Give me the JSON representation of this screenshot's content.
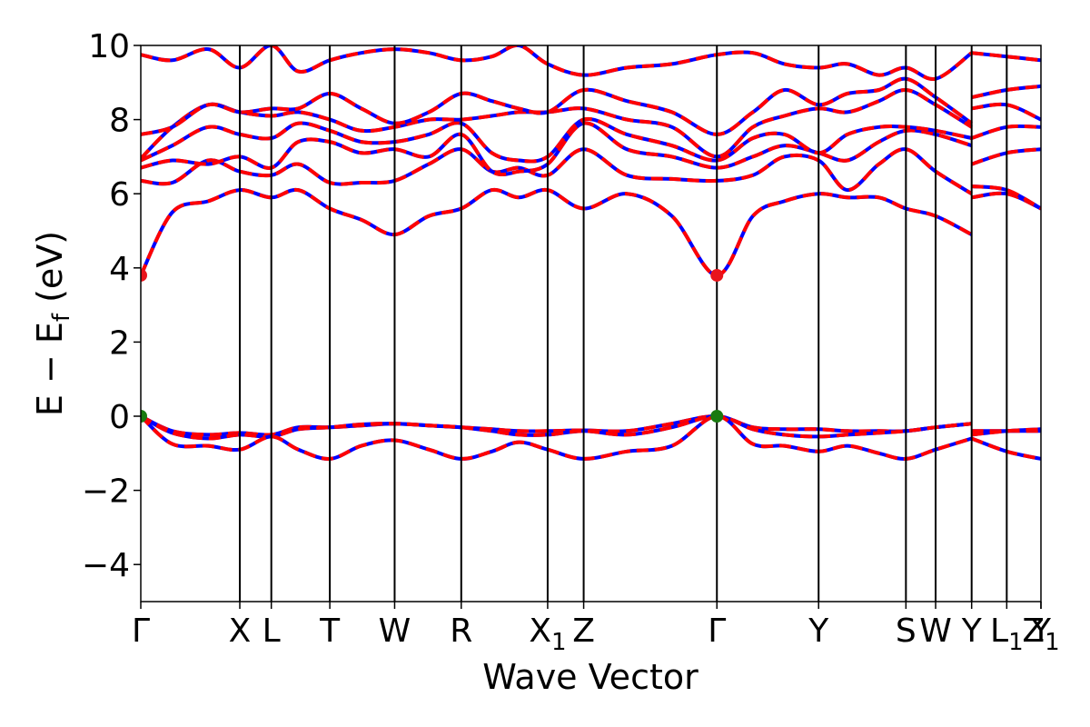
{
  "chart_data": {
    "type": "line",
    "title": "",
    "xlabel": "Wave Vector",
    "ylabel_parts": {
      "a": "E − E",
      "sub": "f",
      "b": " (eV)"
    },
    "ylim": [
      -5,
      10
    ],
    "yticks": [
      -4,
      -2,
      0,
      2,
      4,
      6,
      8,
      10
    ],
    "ytick_labels": [
      "−4",
      "−2",
      "0",
      "2",
      "4",
      "6",
      "8",
      "10"
    ],
    "xlim": [
      0,
      10
    ],
    "kpoints": [
      {
        "label": "Γ",
        "sub": "",
        "x": 0.0
      },
      {
        "label": "X",
        "sub": "",
        "x": 1.1
      },
      {
        "label": "L",
        "sub": "",
        "x": 1.45
      },
      {
        "label": "T",
        "sub": "",
        "x": 2.1
      },
      {
        "label": "W",
        "sub": "",
        "x": 2.82
      },
      {
        "label": "R",
        "sub": "",
        "x": 3.56
      },
      {
        "label": "X",
        "sub": "1",
        "x": 4.52
      },
      {
        "label": "Z",
        "sub": "",
        "x": 4.92
      },
      {
        "label": "Γ",
        "sub": "",
        "x": 6.4
      },
      {
        "label": "Y",
        "sub": "",
        "x": 7.53
      },
      {
        "label": "S",
        "sub": "",
        "x": 8.5
      },
      {
        "label": "W",
        "sub": "",
        "x": 8.83
      },
      {
        "label": "Y",
        "sub": "",
        "x": 9.23
      },
      {
        "label": "L",
        "sub": "1",
        "x": 9.62
      },
      {
        "label": "Y",
        "sub": "",
        "x": 10.0
      },
      {
        "label": "Z",
        "sub": "1",
        "x": 10.0
      }
    ],
    "x": [
      0.0,
      0.35,
      0.75,
      1.1,
      1.45,
      1.75,
      2.1,
      2.45,
      2.82,
      3.2,
      3.56,
      3.9,
      4.2,
      4.52,
      4.92,
      5.4,
      5.9,
      6.4,
      6.8,
      7.15,
      7.53,
      7.85,
      8.2,
      8.5,
      8.83,
      9.23
    ],
    "x_tail": [
      9.23,
      9.62,
      10.0
    ],
    "series": [
      {
        "role": "conduction",
        "values": [
          3.8,
          5.5,
          5.8,
          6.1,
          5.9,
          6.1,
          5.6,
          5.3,
          4.9,
          5.4,
          5.6,
          6.1,
          5.9,
          6.1,
          5.6,
          6.0,
          5.4,
          3.8,
          5.4,
          5.8,
          6.0,
          5.9,
          5.9,
          5.6,
          5.4,
          4.9
        ],
        "tail": [
          5.9,
          6.0,
          5.6
        ]
      },
      {
        "role": "conduction",
        "values": [
          6.35,
          6.3,
          6.9,
          6.6,
          6.5,
          6.8,
          6.3,
          6.3,
          6.35,
          6.8,
          7.2,
          6.6,
          6.7,
          6.5,
          7.2,
          6.5,
          6.4,
          6.35,
          6.5,
          7.0,
          6.9,
          6.1,
          6.8,
          7.2,
          6.6,
          6.0
        ],
        "tail": [
          6.2,
          6.1,
          5.6
        ]
      },
      {
        "role": "conduction",
        "values": [
          6.7,
          6.9,
          6.8,
          7.0,
          6.7,
          7.4,
          7.4,
          7.1,
          7.2,
          7.0,
          7.6,
          6.6,
          6.6,
          6.8,
          7.9,
          7.2,
          7.0,
          6.7,
          7.0,
          7.3,
          7.1,
          6.9,
          7.4,
          7.7,
          7.6,
          7.3
        ],
        "tail": [
          6.8,
          7.1,
          7.2
        ]
      },
      {
        "role": "conduction",
        "values": [
          6.9,
          7.3,
          7.8,
          7.6,
          7.5,
          7.9,
          7.7,
          7.4,
          7.4,
          7.6,
          7.9,
          7.1,
          6.9,
          7.0,
          8.0,
          7.6,
          7.3,
          6.9,
          7.5,
          7.6,
          7.1,
          7.6,
          7.8,
          7.8,
          7.7,
          7.5
        ],
        "tail": [
          7.5,
          7.8,
          7.8
        ]
      },
      {
        "role": "conduction",
        "values": [
          6.95,
          7.8,
          8.4,
          8.2,
          8.1,
          8.2,
          8.0,
          7.7,
          7.8,
          8.0,
          8.0,
          8.1,
          8.2,
          8.2,
          8.3,
          8.0,
          7.8,
          7.0,
          7.8,
          8.1,
          8.3,
          8.2,
          8.5,
          8.8,
          8.4,
          7.8
        ],
        "tail": [
          8.3,
          8.4,
          8.0
        ]
      },
      {
        "role": "conduction",
        "values": [
          7.6,
          7.8,
          8.4,
          8.2,
          8.3,
          8.3,
          8.7,
          8.3,
          7.9,
          8.2,
          8.7,
          8.5,
          8.3,
          8.2,
          8.8,
          8.5,
          8.2,
          7.6,
          8.2,
          8.8,
          8.4,
          8.7,
          8.8,
          9.1,
          8.6,
          7.9
        ],
        "tail": [
          8.6,
          8.8,
          8.9
        ]
      },
      {
        "role": "conduction",
        "values": [
          9.75,
          9.6,
          9.9,
          9.4,
          10.0,
          9.3,
          9.6,
          9.8,
          9.9,
          9.8,
          9.6,
          9.7,
          10.0,
          9.5,
          9.2,
          9.4,
          9.5,
          9.75,
          9.8,
          9.5,
          9.4,
          9.5,
          9.2,
          9.4,
          9.1,
          9.8
        ],
        "tail": [
          9.8,
          9.7,
          9.6
        ]
      },
      {
        "role": "valence",
        "values": [
          0.0,
          -0.4,
          -0.5,
          -0.45,
          -0.5,
          -0.3,
          -0.3,
          -0.25,
          -0.2,
          -0.25,
          -0.3,
          -0.35,
          -0.4,
          -0.4,
          -0.38,
          -0.4,
          -0.2,
          0.0,
          -0.3,
          -0.35,
          -0.35,
          -0.4,
          -0.4,
          -0.4,
          -0.3,
          -0.2
        ],
        "tail": [
          -0.4,
          -0.4,
          -0.4
        ]
      },
      {
        "role": "valence",
        "values": [
          0.0,
          -0.45,
          -0.6,
          -0.5,
          -0.55,
          -0.35,
          -0.3,
          -0.22,
          -0.2,
          -0.25,
          -0.3,
          -0.4,
          -0.5,
          -0.5,
          -0.4,
          -0.5,
          -0.3,
          0.0,
          -0.35,
          -0.5,
          -0.55,
          -0.5,
          -0.45,
          -0.4,
          -0.3,
          -0.2
        ],
        "tail": [
          -0.5,
          -0.4,
          -0.35
        ]
      },
      {
        "role": "valence",
        "values": [
          0.0,
          -0.75,
          -0.8,
          -0.9,
          -0.55,
          -0.9,
          -1.15,
          -0.8,
          -0.65,
          -0.9,
          -1.15,
          -0.95,
          -0.7,
          -0.9,
          -1.15,
          -0.95,
          -0.8,
          0.0,
          -0.75,
          -0.8,
          -0.95,
          -0.8,
          -1.0,
          -1.15,
          -0.9,
          -0.6
        ],
        "tail": [
          -0.6,
          -0.95,
          -1.15
        ]
      }
    ],
    "markers": [
      {
        "type": "cbm",
        "x": 0.0,
        "y": 3.8,
        "color": "#e8141c"
      },
      {
        "type": "cbm",
        "x": 6.4,
        "y": 3.8,
        "color": "#e8141c"
      },
      {
        "type": "vbm",
        "x": 0.0,
        "y": 0.0,
        "color": "#1a7a10"
      },
      {
        "type": "vbm",
        "x": 6.4,
        "y": 0.0,
        "color": "#1a7a10"
      }
    ],
    "colors": {
      "line_a": "#0000ff",
      "line_b": "#ff0000"
    },
    "grid": false,
    "legend": "none"
  }
}
